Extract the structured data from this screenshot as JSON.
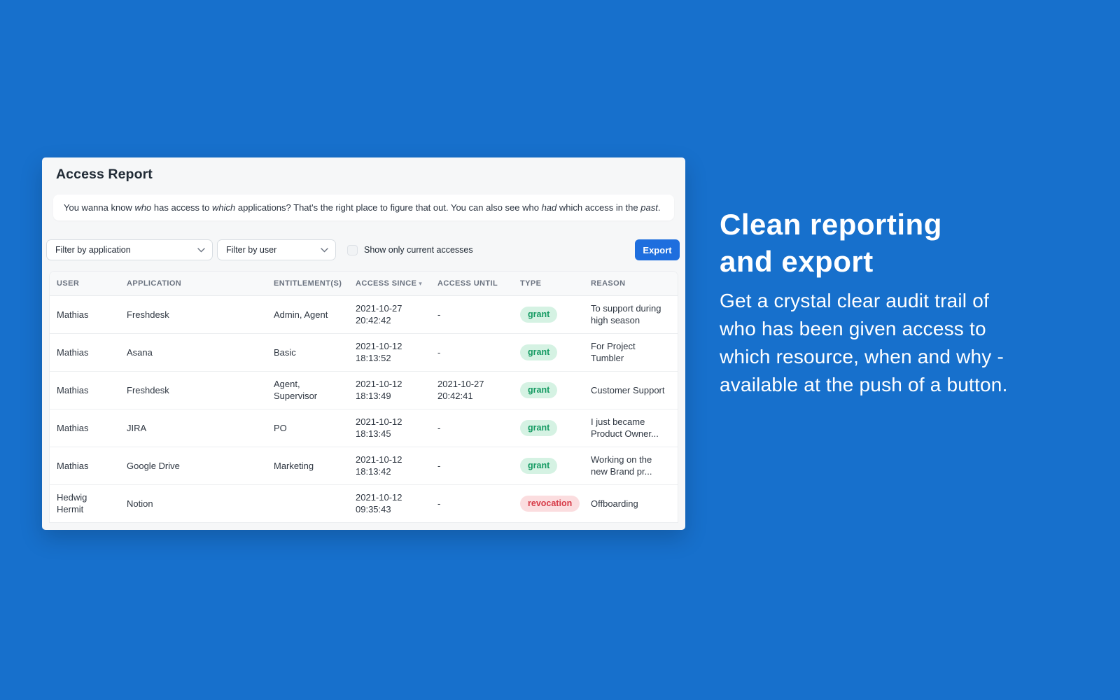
{
  "colors": {
    "page_background": "#1770cc",
    "export_button": "#1e6ede",
    "grant_badge_bg": "#d5f2e3",
    "grant_badge_text": "#149a62",
    "revocation_badge_bg": "#fbdddf",
    "revocation_badge_text": "#d63a47",
    "card_background": "#f6f7f8"
  },
  "card": {
    "title": "Access Report",
    "description_segments": [
      {
        "text": "You wanna know ",
        "italic": false
      },
      {
        "text": "who",
        "italic": true
      },
      {
        "text": " has access to ",
        "italic": false
      },
      {
        "text": "which",
        "italic": true
      },
      {
        "text": " applications? That's the right place to figure that out. You can also see who ",
        "italic": false
      },
      {
        "text": "had",
        "italic": true
      },
      {
        "text": " which access in the ",
        "italic": false
      },
      {
        "text": "past",
        "italic": true
      },
      {
        "text": ".",
        "italic": false
      }
    ],
    "filters": {
      "application_filter": "Filter by application",
      "user_filter": "Filter by user",
      "checkbox_label": "Show only current accesses",
      "checkbox_checked": false,
      "export_label": "Export"
    },
    "table": {
      "sort_indicator": "▾",
      "columns": [
        {
          "key": "user",
          "label": "USER",
          "sorted": false
        },
        {
          "key": "application",
          "label": "APPLICATION",
          "sorted": false
        },
        {
          "key": "entitlements",
          "label": "ENTITLEMENT(S)",
          "sorted": false
        },
        {
          "key": "since",
          "label": "ACCESS SINCE",
          "sorted": true
        },
        {
          "key": "until",
          "label": "ACCESS UNTIL",
          "sorted": false
        },
        {
          "key": "type",
          "label": "TYPE",
          "sorted": false
        },
        {
          "key": "reason",
          "label": "REASON",
          "sorted": false
        }
      ],
      "rows": [
        {
          "user": "Mathias",
          "application": "Freshdesk",
          "entitlements": "Admin, Agent",
          "since": "2021-10-27 20:42:42",
          "until": "-",
          "type": "grant",
          "reason": "To support during high season"
        },
        {
          "user": "Mathias",
          "application": "Asana",
          "entitlements": "Basic",
          "since": "2021-10-12 18:13:52",
          "until": "-",
          "type": "grant",
          "reason": "For Project Tumbler"
        },
        {
          "user": "Mathias",
          "application": "Freshdesk",
          "entitlements": "Agent, Supervisor",
          "since": "2021-10-12 18:13:49",
          "until": "2021-10-27 20:42:41",
          "type": "grant",
          "reason": "Customer Support"
        },
        {
          "user": "Mathias",
          "application": "JIRA",
          "entitlements": "PO",
          "since": "2021-10-12 18:13:45",
          "until": "-",
          "type": "grant",
          "reason": "I just became Product Owner..."
        },
        {
          "user": "Mathias",
          "application": "Google Drive",
          "entitlements": "Marketing",
          "since": "2021-10-12 18:13:42",
          "until": "-",
          "type": "grant",
          "reason": "Working on the new Brand pr..."
        },
        {
          "user": "Hedwig Hermit",
          "application": "Notion",
          "entitlements": "",
          "since": "2021-10-12 09:35:43",
          "until": "-",
          "type": "revocation",
          "reason": "Offboarding"
        }
      ]
    }
  },
  "aside": {
    "heading": "Clean reporting\nand export",
    "body": "Get a crystal clear audit trail of\nwho has been given access to\nwhich resource, when and why -\navailable at the push of a button."
  }
}
